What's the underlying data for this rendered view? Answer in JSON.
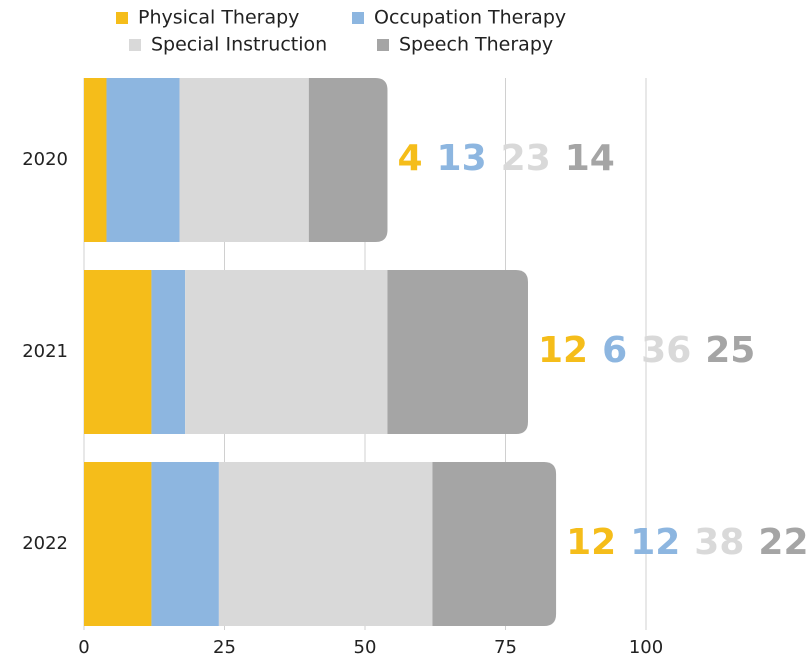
{
  "chart_data": {
    "type": "stacked-bar-horizontal",
    "categories": [
      "2020",
      "2021",
      "2022"
    ],
    "series": [
      {
        "name": "Physical Therapy",
        "color": "#f5bd1a",
        "values": [
          4,
          12,
          12
        ]
      },
      {
        "name": "Occupation Therapy",
        "color": "#8db6e0",
        "values": [
          13,
          6,
          12
        ]
      },
      {
        "name": "Special Instruction",
        "color": "#d9d9d9",
        "values": [
          23,
          36,
          38
        ]
      },
      {
        "name": "Speech Therapy",
        "color": "#a5a5a5",
        "values": [
          14,
          25,
          22
        ]
      }
    ],
    "xlim": [
      0,
      128
    ],
    "xticks": [
      0,
      25,
      50,
      75,
      100
    ],
    "grid": true,
    "legend": "top"
  }
}
